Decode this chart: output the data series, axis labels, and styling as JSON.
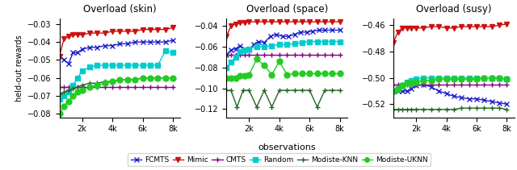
{
  "titles": [
    "Overload (skin)",
    "Overload (space)",
    "Overload (susy)"
  ],
  "xlabel": "observations",
  "ylabel": "held-out rewards",
  "x_ticks": [
    2000,
    4000,
    6000,
    8000
  ],
  "x_tick_labels": [
    "2k",
    "4k",
    "6k",
    "8k"
  ],
  "x_min": 500,
  "x_max": 8500,
  "skin": {
    "ylim": [
      -0.082,
      -0.027
    ],
    "y_ticks": [
      -0.08,
      -0.07,
      -0.06,
      -0.05,
      -0.04,
      -0.03
    ],
    "FCMTS_x": [
      500,
      800,
      1100,
      1400,
      1700,
      2000,
      2500,
      3000,
      3500,
      4000,
      4500,
      5000,
      5500,
      6000,
      6500,
      7000,
      7500,
      8000
    ],
    "FCMTS_y": [
      -0.048,
      -0.05,
      -0.052,
      -0.046,
      -0.046,
      -0.044,
      -0.043,
      -0.043,
      -0.042,
      -0.042,
      -0.041,
      -0.041,
      -0.04,
      -0.04,
      -0.04,
      -0.04,
      -0.04,
      -0.039
    ],
    "Mimic_x": [
      500,
      800,
      1100,
      1400,
      1700,
      2000,
      2500,
      3000,
      3500,
      4000,
      4500,
      5000,
      5500,
      6000,
      6500,
      7000,
      7500,
      8000
    ],
    "Mimic_y": [
      -0.048,
      -0.038,
      -0.037,
      -0.036,
      -0.036,
      -0.036,
      -0.035,
      -0.035,
      -0.035,
      -0.034,
      -0.034,
      -0.034,
      -0.034,
      -0.033,
      -0.033,
      -0.033,
      -0.033,
      -0.032
    ],
    "CMTS_x": [
      500,
      800,
      1100,
      1400,
      1700,
      2000,
      2500,
      3000,
      3500,
      4000,
      4500,
      5000,
      5500,
      6000,
      6500,
      7000,
      7500,
      8000
    ],
    "CMTS_y": [
      -0.065,
      -0.065,
      -0.065,
      -0.065,
      -0.065,
      -0.065,
      -0.065,
      -0.065,
      -0.065,
      -0.065,
      -0.065,
      -0.065,
      -0.065,
      -0.065,
      -0.065,
      -0.065,
      -0.065,
      -0.065
    ],
    "Random_x": [
      500,
      800,
      1100,
      1400,
      1700,
      2000,
      2500,
      3000,
      3500,
      4000,
      4500,
      5000,
      5500,
      6000,
      6500,
      7000,
      7500,
      8000
    ],
    "Random_y": [
      -0.072,
      -0.07,
      -0.068,
      -0.064,
      -0.06,
      -0.056,
      -0.054,
      -0.053,
      -0.053,
      -0.053,
      -0.053,
      -0.053,
      -0.053,
      -0.053,
      -0.053,
      -0.053,
      -0.045,
      -0.046
    ],
    "ModKNN_x": [
      500,
      800,
      1100,
      1400,
      1700,
      2000,
      2500,
      3000,
      3500,
      4000,
      4500,
      5000,
      5500,
      6000,
      6500,
      7000,
      7500,
      8000
    ],
    "ModKNN_y": [
      -0.069,
      -0.068,
      -0.067,
      -0.066,
      -0.065,
      -0.064,
      -0.063,
      -0.063,
      -0.062,
      -0.062,
      -0.061,
      -0.061,
      -0.061,
      -0.06,
      -0.06,
      -0.06,
      -0.06,
      -0.06
    ],
    "ModUKNN_x": [
      500,
      800,
      1100,
      1400,
      1700,
      2000,
      2500,
      3000,
      3500,
      4000,
      4500,
      5000,
      5500,
      6000,
      6500,
      7000,
      7500,
      8000
    ],
    "ModUKNN_y": [
      -0.08,
      -0.076,
      -0.073,
      -0.07,
      -0.068,
      -0.067,
      -0.065,
      -0.064,
      -0.063,
      -0.062,
      -0.061,
      -0.061,
      -0.061,
      -0.06,
      -0.06,
      -0.06,
      -0.06,
      -0.06
    ]
  },
  "space": {
    "ylim": [
      -0.128,
      -0.033
    ],
    "y_ticks": [
      -0.12,
      -0.1,
      -0.08,
      -0.06,
      -0.04
    ],
    "FCMTS_x": [
      500,
      800,
      1100,
      1400,
      1700,
      2000,
      2300,
      2600,
      3000,
      3400,
      3800,
      4200,
      4600,
      5000,
      5400,
      5800,
      6200,
      6600,
      7000,
      7500,
      8000
    ],
    "FCMTS_y": [
      -0.068,
      -0.063,
      -0.062,
      -0.059,
      -0.062,
      -0.063,
      -0.058,
      -0.055,
      -0.056,
      -0.05,
      -0.048,
      -0.05,
      -0.05,
      -0.048,
      -0.046,
      -0.046,
      -0.045,
      -0.044,
      -0.044,
      -0.044,
      -0.044
    ],
    "Mimic_x": [
      500,
      800,
      1100,
      1400,
      1700,
      2000,
      2500,
      3000,
      3500,
      4000,
      4500,
      5000,
      5500,
      6000,
      6500,
      7000,
      7500,
      8000
    ],
    "Mimic_y": [
      -0.05,
      -0.04,
      -0.038,
      -0.037,
      -0.037,
      -0.036,
      -0.036,
      -0.036,
      -0.036,
      -0.036,
      -0.036,
      -0.036,
      -0.036,
      -0.036,
      -0.036,
      -0.036,
      -0.036,
      -0.036
    ],
    "CMTS_x": [
      500,
      800,
      1100,
      1400,
      1700,
      2000,
      2500,
      3000,
      3500,
      4000,
      4500,
      5000,
      5500,
      6000,
      6500,
      7000,
      7500,
      8000
    ],
    "CMTS_y": [
      -0.068,
      -0.068,
      -0.068,
      -0.068,
      -0.068,
      -0.068,
      -0.068,
      -0.068,
      -0.068,
      -0.068,
      -0.068,
      -0.068,
      -0.068,
      -0.068,
      -0.068,
      -0.068,
      -0.068,
      -0.068
    ],
    "Random_x": [
      500,
      800,
      1100,
      1400,
      1700,
      2000,
      2500,
      3000,
      3500,
      4000,
      4500,
      5000,
      5500,
      6000,
      6500,
      7000,
      7500,
      8000
    ],
    "Random_y": [
      -0.08,
      -0.075,
      -0.07,
      -0.065,
      -0.063,
      -0.062,
      -0.06,
      -0.06,
      -0.059,
      -0.058,
      -0.058,
      -0.057,
      -0.056,
      -0.055,
      -0.055,
      -0.055,
      -0.055,
      -0.055
    ],
    "ModKNN_x": [
      500,
      800,
      1200,
      1600,
      2000,
      2500,
      3000,
      3500,
      4000,
      4500,
      5000,
      5500,
      6000,
      6500,
      7000,
      7500,
      8000
    ],
    "ModKNN_y": [
      -0.102,
      -0.102,
      -0.118,
      -0.102,
      -0.102,
      -0.118,
      -0.102,
      -0.118,
      -0.102,
      -0.102,
      -0.102,
      -0.102,
      -0.102,
      -0.118,
      -0.102,
      -0.102,
      -0.102
    ],
    "ModUKNN_x": [
      500,
      800,
      1100,
      1400,
      1700,
      2000,
      2500,
      3000,
      3500,
      4000,
      4500,
      5000,
      5500,
      6000,
      6500,
      7000,
      7500,
      8000
    ],
    "ModUKNN_y": [
      -0.09,
      -0.09,
      -0.09,
      -0.088,
      -0.088,
      -0.087,
      -0.072,
      -0.078,
      -0.087,
      -0.074,
      -0.087,
      -0.086,
      -0.086,
      -0.086,
      -0.086,
      -0.086,
      -0.086,
      -0.086
    ]
  },
  "susy": {
    "ylim": [
      -0.53,
      -0.455
    ],
    "y_ticks": [
      -0.52,
      -0.5,
      -0.48,
      -0.46
    ],
    "FCMTS_x": [
      500,
      800,
      1100,
      1400,
      1700,
      2000,
      2500,
      3000,
      3500,
      4000,
      4500,
      5000,
      5500,
      6000,
      6500,
      7000,
      7500,
      8000
    ],
    "FCMTS_y": [
      -0.51,
      -0.51,
      -0.51,
      -0.51,
      -0.508,
      -0.506,
      -0.505,
      -0.507,
      -0.51,
      -0.512,
      -0.514,
      -0.515,
      -0.516,
      -0.516,
      -0.517,
      -0.518,
      -0.519,
      -0.52
    ],
    "Mimic_x": [
      500,
      800,
      1100,
      1400,
      1700,
      2000,
      2500,
      3000,
      3500,
      4000,
      4500,
      5000,
      5500,
      6000,
      6500,
      7000,
      7500,
      8000
    ],
    "Mimic_y": [
      -0.473,
      -0.465,
      -0.462,
      -0.462,
      -0.462,
      -0.462,
      -0.462,
      -0.461,
      -0.461,
      -0.462,
      -0.462,
      -0.461,
      -0.461,
      -0.461,
      -0.461,
      -0.461,
      -0.46,
      -0.459
    ],
    "CMTS_x": [
      500,
      800,
      1100,
      1400,
      1700,
      2000,
      2500,
      3000,
      3500,
      4000,
      4500,
      5000,
      5500,
      6000,
      6500,
      7000,
      7500,
      8000
    ],
    "CMTS_y": [
      -0.505,
      -0.505,
      -0.505,
      -0.505,
      -0.505,
      -0.505,
      -0.505,
      -0.505,
      -0.505,
      -0.505,
      -0.505,
      -0.505,
      -0.505,
      -0.505,
      -0.505,
      -0.505,
      -0.505,
      -0.505
    ],
    "Random_x": [
      500,
      800,
      1100,
      1400,
      1700,
      2000,
      2500,
      3000,
      3500,
      4000,
      4500,
      5000,
      5500,
      6000,
      6500,
      7000,
      7500,
      8000
    ],
    "Random_y": [
      -0.51,
      -0.508,
      -0.506,
      -0.503,
      -0.502,
      -0.501,
      -0.5,
      -0.5,
      -0.5,
      -0.5,
      -0.5,
      -0.5,
      -0.5,
      -0.5,
      -0.5,
      -0.5,
      -0.5,
      -0.501
    ],
    "ModKNN_x": [
      500,
      800,
      1100,
      1400,
      1700,
      2000,
      2500,
      3000,
      3500,
      4000,
      4500,
      5000,
      5500,
      6000,
      6500,
      7000,
      7500,
      8000
    ],
    "ModKNN_y": [
      -0.524,
      -0.524,
      -0.524,
      -0.524,
      -0.524,
      -0.524,
      -0.524,
      -0.524,
      -0.524,
      -0.524,
      -0.524,
      -0.523,
      -0.523,
      -0.523,
      -0.523,
      -0.523,
      -0.523,
      -0.524
    ],
    "ModUKNN_x": [
      500,
      800,
      1100,
      1400,
      1700,
      2000,
      2500,
      3000,
      3500,
      4000,
      4500,
      5000,
      5500,
      6000,
      6500,
      7000,
      7500,
      8000
    ],
    "ModUKNN_y": [
      -0.51,
      -0.508,
      -0.506,
      -0.504,
      -0.504,
      -0.503,
      -0.502,
      -0.502,
      -0.501,
      -0.501,
      -0.501,
      -0.501,
      -0.501,
      -0.501,
      -0.5,
      -0.5,
      -0.5,
      -0.501
    ]
  },
  "colors": {
    "FCMTS": "#1f1fcc",
    "Mimic": "#cc1111",
    "CMTS": "#880088",
    "Random": "#00cccc",
    "ModKNN": "#226622",
    "ModUKNN": "#22cc22"
  },
  "markers": {
    "FCMTS": "x",
    "Mimic": "v",
    "CMTS": "+",
    "Random": "s",
    "ModKNN": "+",
    "ModUKNN": "o"
  },
  "markersizes": {
    "FCMTS": 4,
    "Mimic": 4,
    "CMTS": 4,
    "Random": 5,
    "ModKNN": 4,
    "ModUKNN": 5
  },
  "legend_labels": [
    "FCMTS",
    "Mimic",
    "CMTS",
    "Random",
    "Modiste-KNN",
    "Modiste-UKNN"
  ]
}
